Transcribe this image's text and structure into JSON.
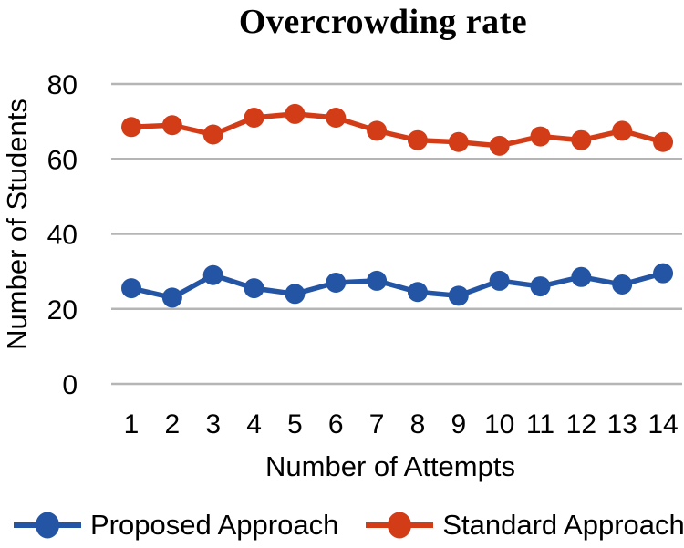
{
  "chart_data": {
    "type": "line",
    "title": "Overcrowding rate",
    "xlabel": "Number of Attempts",
    "ylabel": "Number of Students",
    "categories": [
      1,
      2,
      3,
      4,
      5,
      6,
      7,
      8,
      9,
      10,
      11,
      12,
      13,
      14
    ],
    "series": [
      {
        "name": "Proposed Approach",
        "color": "#2355a4",
        "values": [
          25.5,
          23,
          29,
          25.5,
          24,
          27,
          27.5,
          24.5,
          23.5,
          27.5,
          26,
          28.5,
          26.5,
          29.5
        ]
      },
      {
        "name": "Standard Approach",
        "color": "#d23d18",
        "values": [
          68.5,
          69,
          66.5,
          71,
          72,
          71,
          67.5,
          65,
          64.5,
          63.5,
          66,
          65,
          67.5,
          64.5
        ]
      }
    ],
    "yticks": [
      0,
      20,
      40,
      60,
      80
    ],
    "ylim": [
      0,
      80
    ],
    "grid": "horizontal",
    "gridline_color": "#b5b5b5",
    "legend_position": "bottom"
  }
}
